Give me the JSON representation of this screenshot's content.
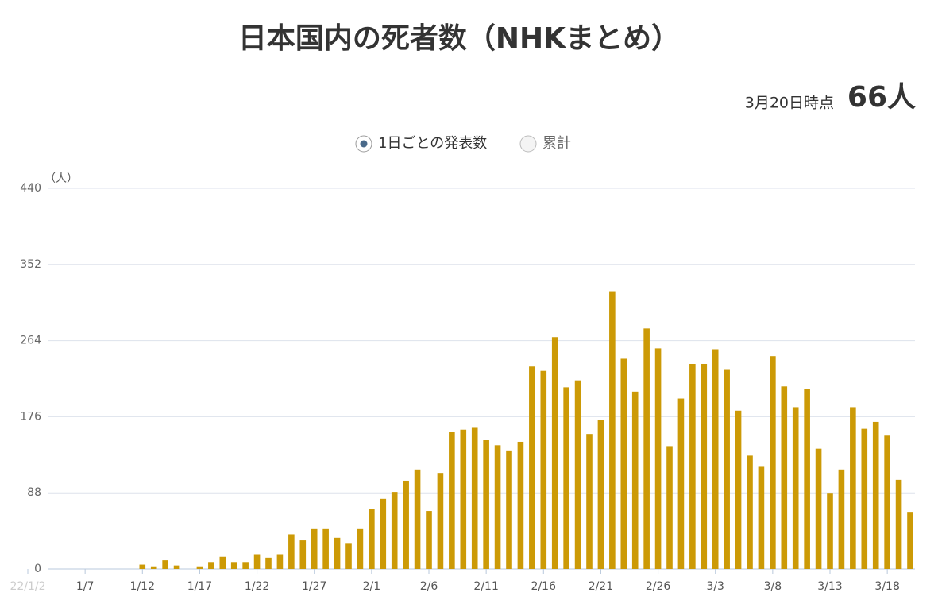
{
  "chart_data": {
    "type": "bar",
    "title": "日本国内の死者数（NHKまとめ）",
    "as_of": "3月20日時点",
    "latest": "66人",
    "options": [
      "1日ごとの発表数",
      "累計"
    ],
    "y_unit": "（人）",
    "color": "#cc9a06",
    "grid": true,
    "categories": [
      "22/1/2",
      null,
      null,
      null,
      null,
      "1/7",
      null,
      null,
      null,
      null,
      "1/12",
      null,
      null,
      null,
      null,
      "1/17",
      null,
      null,
      null,
      null,
      "1/22",
      null,
      null,
      null,
      null,
      "1/27",
      null,
      null,
      null,
      null,
      "2/1",
      null,
      null,
      null,
      null,
      "2/6",
      null,
      null,
      null,
      null,
      "2/11",
      null,
      null,
      null,
      null,
      "2/16",
      null,
      null,
      null,
      null,
      "2/21",
      null,
      null,
      null,
      null,
      "2/26",
      null,
      null,
      null,
      null,
      "3/3",
      null,
      null,
      null,
      null,
      "3/8",
      null,
      null,
      null,
      null,
      "3/13",
      null,
      null,
      null,
      null,
      "3/18",
      null,
      null
    ],
    "values": [
      0,
      0,
      0,
      0,
      0,
      0,
      0,
      0,
      0,
      0,
      5,
      3,
      10,
      4,
      0,
      3,
      8,
      14,
      8,
      8,
      17,
      13,
      17,
      40,
      33,
      47,
      47,
      36,
      30,
      47,
      69,
      81,
      89,
      102,
      115,
      67,
      111,
      158,
      161,
      164,
      149,
      143,
      137,
      147,
      234,
      229,
      268,
      210,
      218,
      156,
      172,
      321,
      243,
      205,
      278,
      255,
      142,
      197,
      237,
      237,
      254,
      231,
      183,
      131,
      119,
      246,
      211,
      187,
      208,
      139,
      88,
      115,
      187,
      162,
      170,
      155,
      103,
      66
    ],
    "ylim": [
      0,
      440
    ],
    "yticks": [
      0,
      88,
      176,
      264,
      352,
      440
    ]
  }
}
